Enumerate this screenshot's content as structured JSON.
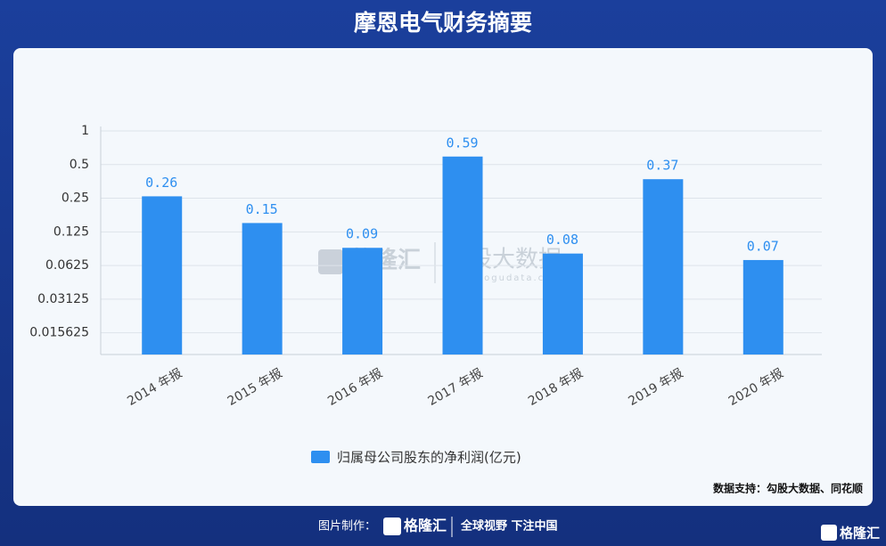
{
  "header": {
    "title": "摩恩电气财务摘要"
  },
  "chart_data": {
    "type": "bar",
    "categories": [
      "2014 年报",
      "2015 年报",
      "2016 年报",
      "2017 年报",
      "2018 年报",
      "2019 年报",
      "2020 年报"
    ],
    "series": [
      {
        "name": "归属母公司股东的净利润(亿元)",
        "color": "#2e8ff0",
        "values": [
          0.26,
          0.15,
          0.09,
          0.59,
          0.08,
          0.37,
          0.07
        ]
      }
    ],
    "ylim": [
      0.01,
      1
    ],
    "yticks": [
      0.015625,
      0.03125,
      0.0625,
      0.125,
      0.25,
      0.5,
      1
    ],
    "log_scale": true,
    "grid": true,
    "legend": "bottom",
    "source": "数据支持：勾股大数据、同花顺"
  },
  "watermark": {
    "left": "格隆汇",
    "right": "勾股大数据",
    "url": "www.gogudata.com"
  },
  "footer": {
    "made_by": "图片制作：",
    "brand": "格隆汇",
    "slogan": "全球视野 下注中国",
    "corner_brand": "格隆汇"
  }
}
